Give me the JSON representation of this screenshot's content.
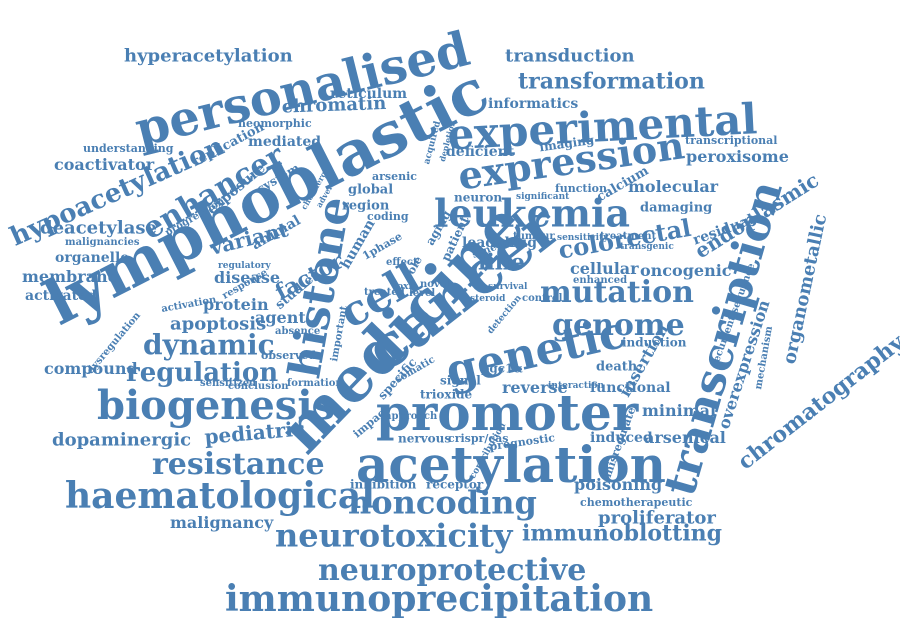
{
  "colors": {
    "word": "#4a7fb3",
    "background": "#ffffff"
  },
  "words": [
    {
      "text": "lymphoblastic"
    },
    {
      "text": "medicine"
    },
    {
      "text": "cancer"
    },
    {
      "text": "promoter"
    },
    {
      "text": "acetylation"
    },
    {
      "text": "personalised"
    },
    {
      "text": "experimental"
    },
    {
      "text": "expression"
    },
    {
      "text": "transcription"
    },
    {
      "text": "histone"
    },
    {
      "text": "genetic"
    },
    {
      "text": "leukemia"
    },
    {
      "text": "cell"
    },
    {
      "text": "biogenesis"
    },
    {
      "text": "haematological"
    },
    {
      "text": "immunoprecipitation"
    },
    {
      "text": "neurotoxicity"
    },
    {
      "text": "neuroprotective"
    },
    {
      "text": "noncoding"
    },
    {
      "text": "resistance"
    },
    {
      "text": "enhancer"
    },
    {
      "text": "hypoacetylation"
    },
    {
      "text": "mutation"
    },
    {
      "text": "genome"
    },
    {
      "text": "dynamic"
    },
    {
      "text": "regulation"
    },
    {
      "text": "transformation"
    },
    {
      "text": "hyperacetylation"
    },
    {
      "text": "transduction"
    },
    {
      "text": "chromatography"
    },
    {
      "text": "organometallic"
    },
    {
      "text": "colorectal"
    },
    {
      "text": "immunoblotting"
    },
    {
      "text": "dopaminergic"
    },
    {
      "text": "pediatric"
    },
    {
      "text": "chromatin"
    },
    {
      "text": "deacetylase"
    },
    {
      "text": "factor"
    },
    {
      "text": "apoptosis"
    },
    {
      "text": "variant"
    },
    {
      "text": "endoplasmic"
    },
    {
      "text": "molecular"
    },
    {
      "text": "peroxisome"
    },
    {
      "text": "informatics"
    },
    {
      "text": "reticulum"
    },
    {
      "text": "coactivator"
    },
    {
      "text": "membrane"
    },
    {
      "text": "organelle"
    },
    {
      "text": "activated"
    },
    {
      "text": "malignancies"
    },
    {
      "text": "compound"
    },
    {
      "text": "malignancy"
    },
    {
      "text": "proliferator"
    },
    {
      "text": "poisoning"
    },
    {
      "text": "overexpression"
    },
    {
      "text": "insertion"
    },
    {
      "text": "cellular"
    },
    {
      "text": "oncogenic"
    },
    {
      "text": "residual"
    },
    {
      "text": "minimal"
    },
    {
      "text": "induced"
    },
    {
      "text": "arsenical"
    },
    {
      "text": "lead drug"
    },
    {
      "text": "line"
    },
    {
      "text": "reverse"
    },
    {
      "text": "functional"
    },
    {
      "text": "protein"
    },
    {
      "text": "disease"
    },
    {
      "text": "agent"
    },
    {
      "text": "mediated"
    },
    {
      "text": "neomorphic"
    },
    {
      "text": "understanding"
    },
    {
      "text": "replication"
    },
    {
      "text": "exposure"
    },
    {
      "text": "system"
    },
    {
      "text": "animal"
    },
    {
      "text": "studies"
    },
    {
      "text": "imaging"
    },
    {
      "text": "deficient"
    },
    {
      "text": "transcriptional"
    },
    {
      "text": "arsenic"
    },
    {
      "text": "global"
    },
    {
      "text": "region"
    },
    {
      "text": "neuron"
    },
    {
      "text": "function"
    },
    {
      "text": "calcium"
    },
    {
      "text": "damaging"
    },
    {
      "text": "tumour"
    },
    {
      "text": "treatment"
    },
    {
      "text": "induction"
    },
    {
      "text": "death"
    },
    {
      "text": "pgc1α"
    },
    {
      "text": "signal"
    },
    {
      "text": "trioxide"
    },
    {
      "text": "nervous"
    },
    {
      "text": "crispr/cas"
    },
    {
      "text": "prognostic"
    },
    {
      "text": "receptor"
    },
    {
      "text": "inhibition"
    },
    {
      "text": "chemotherapeutic"
    },
    {
      "text": "misregulate"
    },
    {
      "text": "recurrent sequence"
    },
    {
      "text": "mechanism"
    },
    {
      "text": "human"
    },
    {
      "text": "coding"
    },
    {
      "text": "specific"
    },
    {
      "text": "impact"
    },
    {
      "text": "approach"
    },
    {
      "text": "sensitized"
    },
    {
      "text": "observed"
    },
    {
      "text": "absence"
    },
    {
      "text": "conclusion"
    },
    {
      "text": "formation"
    },
    {
      "text": "response"
    },
    {
      "text": "regulatory"
    },
    {
      "text": "activation"
    },
    {
      "text": "dysregulation"
    },
    {
      "text": "progression"
    },
    {
      "text": "level"
    },
    {
      "text": "effect"
    },
    {
      "text": "control"
    },
    {
      "text": "survival"
    },
    {
      "text": "synergy"
    },
    {
      "text": "enhanced"
    },
    {
      "text": "sensitivity"
    },
    {
      "text": "significant"
    },
    {
      "text": "steroid"
    },
    {
      "text": "novel"
    },
    {
      "text": "toxic"
    },
    {
      "text": "treated"
    },
    {
      "text": "important"
    },
    {
      "text": "somatic"
    },
    {
      "text": "detection"
    },
    {
      "text": "contribution"
    },
    {
      "text": "interaction"
    },
    {
      "text": "transgenic"
    },
    {
      "text": "aging"
    },
    {
      "text": "patient"
    },
    {
      "text": "role"
    },
    {
      "text": "1phase"
    },
    {
      "text": "acquired"
    },
    {
      "text": "depletion"
    },
    {
      "text": "cholinergic"
    },
    {
      "text": "adverse"
    }
  ]
}
